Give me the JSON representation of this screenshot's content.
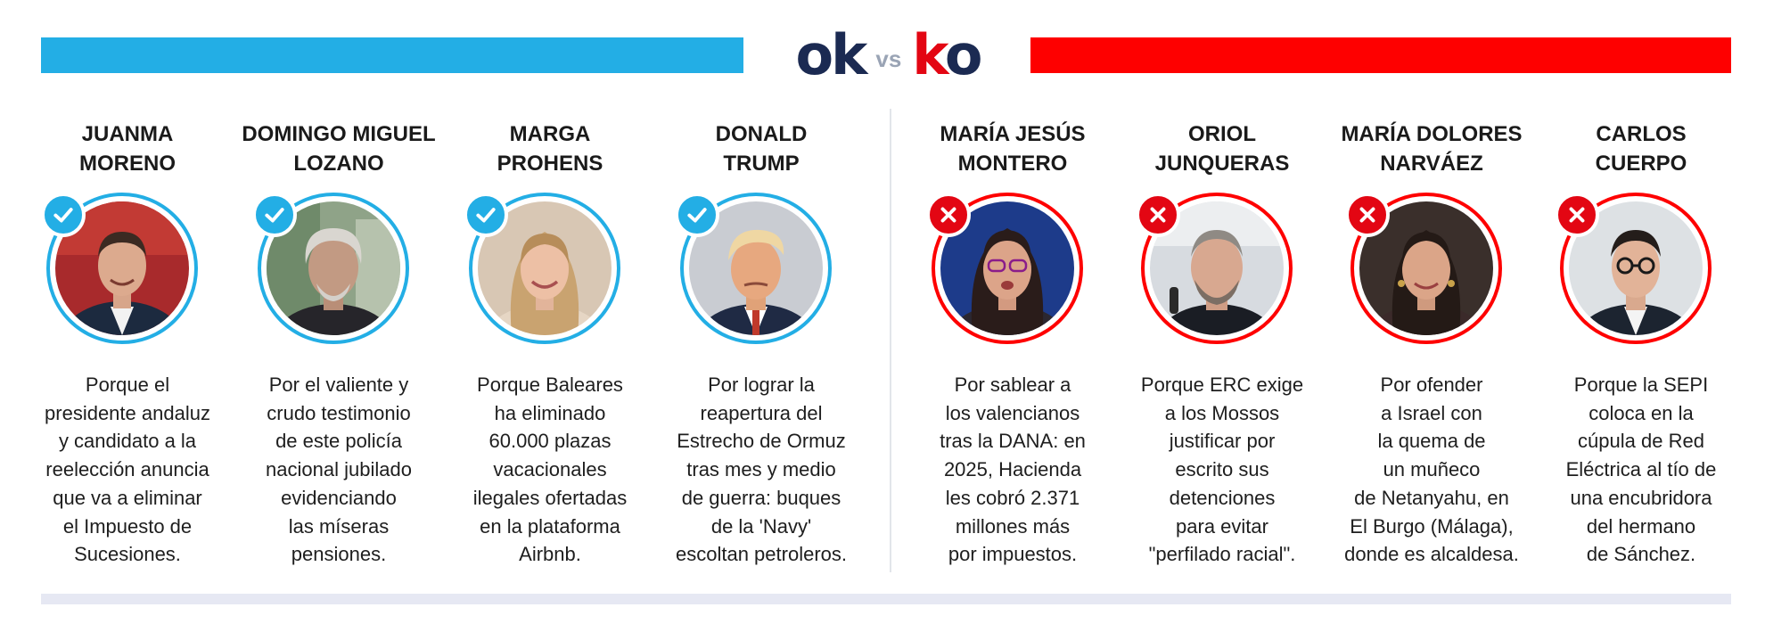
{
  "header": {
    "logo_ok": "ok",
    "logo_vs": "vs",
    "logo_ko_k": "k",
    "logo_ko_o": "o",
    "ok_color": "#23aee5",
    "ko_color": "#fe0000"
  },
  "ok": [
    {
      "name": "JUANMA\nMORENO",
      "status": "check-icon",
      "text": "Porque el\npresidente andaluz\ny candidato a la\nreelección anuncia\nque va a eliminar\nel Impuesto de\nSucesiones."
    },
    {
      "name": "DOMINGO MIGUEL\nLOZANO",
      "status": "check-icon",
      "text": "Por el valiente y\ncrudo testimonio\nde este policía\nnacional jubilado\nevidenciando\nlas míseras\npensiones."
    },
    {
      "name": "MARGA\nPROHENS",
      "status": "check-icon",
      "text": "Porque Baleares\nha eliminado\n60.000 plazas\nvacacionales\nilegales ofertadas\nen la plataforma\nAirbnb."
    },
    {
      "name": "DONALD\nTRUMP",
      "status": "check-icon",
      "text": "Por lograr la\nreapertura del\nEstrecho de Ormuz\ntras mes y medio\nde guerra: buques\nde la 'Navy'\nescoltan petroleros."
    }
  ],
  "ko": [
    {
      "name": "MARÍA JESÚS\nMONTERO",
      "status": "cross-icon",
      "text": "Por sablear a\nlos valencianos\ntras la DANA: en\n2025, Hacienda\nles cobró 2.371\nmillones más\npor impuestos."
    },
    {
      "name": "ORIOL\nJUNQUERAS",
      "status": "cross-icon",
      "text": "Porque ERC exige\na los Mossos\njustificar por\nescrito sus\ndetenciones\npara evitar\n\"perfilado racial\"."
    },
    {
      "name": "MARÍA DOLORES\nNARVÁEZ",
      "status": "cross-icon",
      "text": "Por ofender\na Israel con\nla quema de\nun muñeco\nde Netanyahu, en\nEl Burgo (Málaga),\ndonde es alcaldesa."
    },
    {
      "name": "CARLOS\nCUERPO",
      "status": "cross-icon",
      "text": "Porque la SEPI\ncoloca en la\ncúpula de Red\nEléctrica al tío de\nuna encubridora\ndel hermano\nde Sánchez."
    }
  ]
}
